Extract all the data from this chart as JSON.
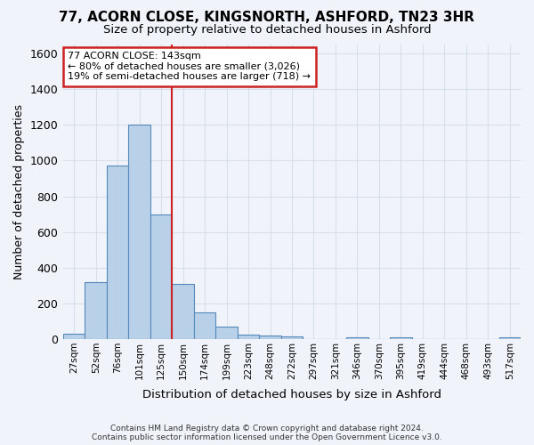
{
  "title_line1": "77, ACORN CLOSE, KINGSNORTH, ASHFORD, TN23 3HR",
  "title_line2": "Size of property relative to detached houses in Ashford",
  "xlabel": "Distribution of detached houses by size in Ashford",
  "ylabel": "Number of detached properties",
  "footer_line1": "Contains HM Land Registry data © Crown copyright and database right 2024.",
  "footer_line2": "Contains public sector information licensed under the Open Government Licence v3.0.",
  "annotation_line1": "77 ACORN CLOSE: 143sqm",
  "annotation_line2": "← 80% of detached houses are smaller (3,026)",
  "annotation_line3": "19% of semi-detached houses are larger (718) →",
  "bar_labels": [
    "27sqm",
    "52sqm",
    "76sqm",
    "101sqm",
    "125sqm",
    "150sqm",
    "174sqm",
    "199sqm",
    "223sqm",
    "248sqm",
    "272sqm",
    "297sqm",
    "321sqm",
    "346sqm",
    "370sqm",
    "395sqm",
    "419sqm",
    "444sqm",
    "468sqm",
    "493sqm",
    "517sqm"
  ],
  "bar_values": [
    28,
    320,
    970,
    1200,
    700,
    310,
    150,
    70,
    25,
    20,
    15,
    0,
    0,
    10,
    0,
    10,
    0,
    0,
    0,
    0,
    10
  ],
  "bar_color": "#b8d0e8",
  "bar_edge_color": "#5588bb",
  "vline_x": 4.5,
  "vline_color": "#cc2222",
  "ylim": [
    0,
    1650
  ],
  "yticks": [
    0,
    200,
    400,
    600,
    800,
    1000,
    1200,
    1400,
    1600
  ],
  "bg_color": "#f0f4fa",
  "plot_bg_color": "#f0f4fa",
  "grid_color": "#d8dfe8",
  "annotation_box_color": "#ffffff",
  "annotation_box_edge": "#cc2222",
  "title1_fontsize": 11,
  "title2_fontsize": 10
}
